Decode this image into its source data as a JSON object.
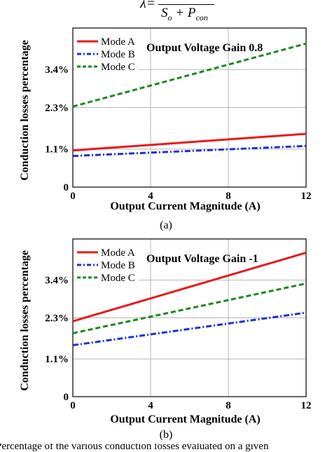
{
  "header": {
    "equation_fragment": "λ=",
    "denominator": "S",
    "denominator_sub": "o",
    "plus": "+ P",
    "plus_sub": "con"
  },
  "colors": {
    "mode_a": "#e8191b",
    "mode_b": "#1f2fd6",
    "mode_c": "#188a1c",
    "axis": "#000000",
    "grid": "#b5b5b5"
  },
  "caption_bottom": "Percentage of the various conduction losses evaluated on a given",
  "chart_data": [
    {
      "type": "line",
      "panel_label": "(a)",
      "annotation": "Output Voltage Gain 0.8",
      "xlabel": "Output Current Magnitude (A)",
      "ylabel": "Conduction losses percentage",
      "xticks": [
        "0",
        "4",
        "8",
        "12"
      ],
      "yticks": [
        "0",
        "1.1%",
        "2.3%",
        "3.4%"
      ],
      "xlim": [
        0,
        12
      ],
      "ylim": [
        0,
        4.6
      ],
      "grid": true,
      "legend_position": "top-left",
      "series": [
        {
          "name": "Mode A",
          "style": "solid",
          "x": [
            0,
            12
          ],
          "y": [
            1.06,
            1.54
          ]
        },
        {
          "name": "Mode B",
          "style": "dashdot",
          "x": [
            0,
            12
          ],
          "y": [
            0.9,
            1.19
          ]
        },
        {
          "name": "Mode C",
          "style": "dashed",
          "x": [
            0,
            12
          ],
          "y": [
            2.33,
            4.15
          ]
        }
      ]
    },
    {
      "type": "line",
      "panel_label": "(b)",
      "annotation": "Output Voltage Gain -1",
      "xlabel": "Output Current Magnitude (A)",
      "ylabel": "Conduction losses percentage",
      "xticks": [
        "0",
        "4",
        "8",
        "12"
      ],
      "yticks": [
        "0",
        "1.1%",
        "2.3%",
        "3.4%"
      ],
      "xlim": [
        0,
        12
      ],
      "ylim": [
        0,
        4.6
      ],
      "grid": true,
      "legend_position": "top-left",
      "series": [
        {
          "name": "Mode A",
          "style": "solid",
          "x": [
            0,
            12
          ],
          "y": [
            2.2,
            4.2
          ]
        },
        {
          "name": "Mode B",
          "style": "dashdot",
          "x": [
            0,
            12
          ],
          "y": [
            1.5,
            2.45
          ]
        },
        {
          "name": "Mode C",
          "style": "dashed",
          "x": [
            0,
            12
          ],
          "y": [
            1.85,
            3.3
          ]
        }
      ]
    }
  ]
}
